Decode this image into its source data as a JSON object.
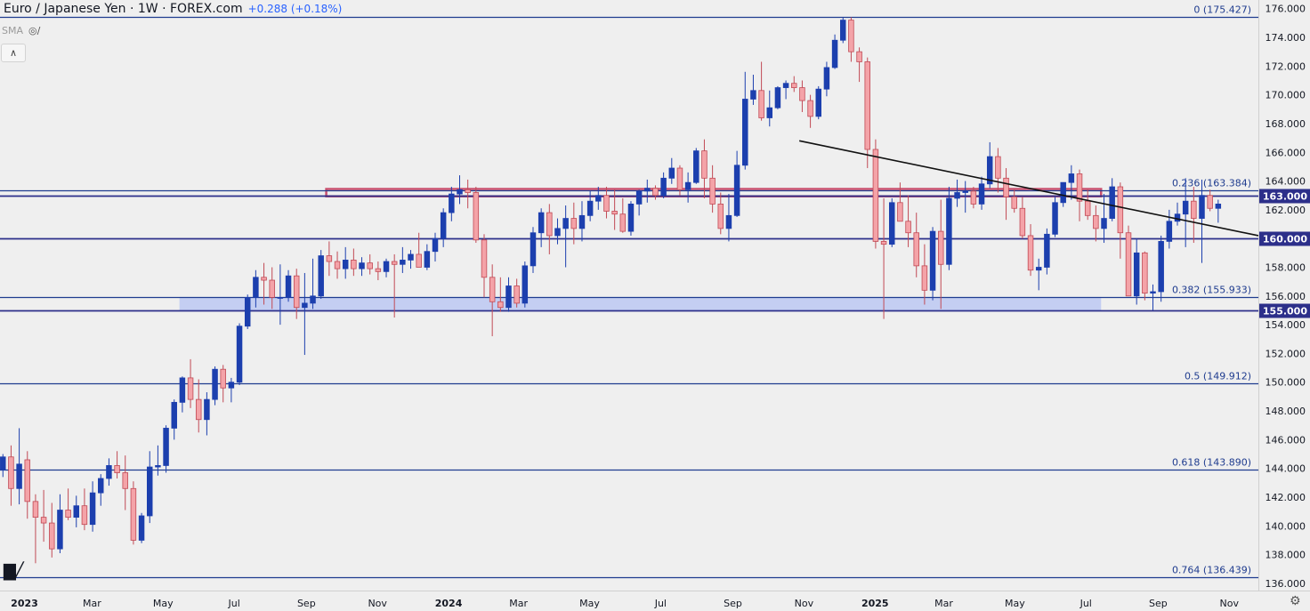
{
  "header": {
    "title": "Euro / Japanese Yen · 1W · FOREX.com",
    "change": "+0.288 (+0.18%)",
    "indicator": "SMA"
  },
  "icons": {
    "visibility": "eye-off-icon",
    "collapse": "chevron-up-icon",
    "logo": "tradingview-logo",
    "settings": "gear-icon"
  },
  "colors": {
    "background": "#efefef",
    "bull": "#1c3fae",
    "bear": "#f4a3a8",
    "bear_edge": "#c14a55",
    "level_line": "#2c2f8a",
    "fib_line": "#1f3c8f",
    "resistance_band": "#c9506f",
    "support_zone": "#b9c5f2",
    "trendline": "#111111",
    "axis_text": "#131722"
  },
  "chart_data": {
    "type": "candlestick",
    "symbol": "EUR/JPY",
    "interval": "1W",
    "ylim": [
      135.5,
      176.6
    ],
    "yticks": [
      136,
      138,
      140,
      142,
      144,
      146,
      148,
      150,
      152,
      154,
      156,
      158,
      160,
      162,
      164,
      166,
      168,
      170,
      172,
      174,
      176
    ],
    "ytick_labels": [
      "136.000",
      "138.000",
      "140.000",
      "142.000",
      "144.000",
      "146.000",
      "148.000",
      "150.000",
      "152.000",
      "154.000",
      "156.000",
      "158.000",
      "160.000",
      "162.000",
      "164.000",
      "166.000",
      "168.000",
      "170.000",
      "172.000",
      "174.000",
      "176.000"
    ],
    "xlim": [
      "2022-12-12",
      "2025-11-26"
    ],
    "xticks": [
      {
        "date": "2023-01-02",
        "label": "2023",
        "bold": true
      },
      {
        "date": "2023-03-01",
        "label": "Mar"
      },
      {
        "date": "2023-05-01",
        "label": "May"
      },
      {
        "date": "2023-07-01",
        "label": "Jul"
      },
      {
        "date": "2023-09-01",
        "label": "Sep"
      },
      {
        "date": "2023-11-01",
        "label": "Nov"
      },
      {
        "date": "2024-01-01",
        "label": "2024",
        "bold": true
      },
      {
        "date": "2024-03-01",
        "label": "Mar"
      },
      {
        "date": "2024-05-01",
        "label": "May"
      },
      {
        "date": "2024-07-01",
        "label": "Jul"
      },
      {
        "date": "2024-09-01",
        "label": "Sep"
      },
      {
        "date": "2024-11-01",
        "label": "Nov"
      },
      {
        "date": "2025-01-01",
        "label": "2025",
        "bold": true
      },
      {
        "date": "2025-03-01",
        "label": "Mar"
      },
      {
        "date": "2025-05-01",
        "label": "May"
      },
      {
        "date": "2025-07-01",
        "label": "Jul"
      },
      {
        "date": "2025-09-01",
        "label": "Sep"
      },
      {
        "date": "2025-11-01",
        "label": "Nov"
      }
    ],
    "first_week": "2022-12-12",
    "weeks": [
      [
        143.9,
        145.0,
        143.4,
        144.8
      ],
      [
        144.8,
        145.6,
        141.4,
        142.6
      ],
      [
        142.6,
        146.8,
        141.5,
        144.3
      ],
      [
        144.6,
        145.2,
        140.5,
        141.7
      ],
      [
        141.7,
        142.2,
        137.4,
        140.6
      ],
      [
        140.6,
        142.5,
        138.9,
        140.2
      ],
      [
        140.2,
        141.6,
        137.8,
        138.4
      ],
      [
        138.4,
        142.2,
        138.1,
        141.1
      ],
      [
        141.1,
        142.6,
        140.4,
        140.6
      ],
      [
        140.6,
        142.1,
        139.9,
        141.4
      ],
      [
        141.4,
        142.6,
        139.7,
        140.1
      ],
      [
        140.1,
        143.1,
        139.6,
        142.3
      ],
      [
        142.3,
        143.6,
        141.4,
        143.3
      ],
      [
        143.3,
        144.7,
        142.8,
        144.2
      ],
      [
        144.2,
        145.2,
        143.3,
        143.7
      ],
      [
        143.7,
        144.9,
        141.1,
        142.6
      ],
      [
        142.6,
        143.1,
        138.7,
        139.0
      ],
      [
        139.0,
        140.9,
        138.8,
        140.7
      ],
      [
        140.7,
        145.2,
        140.2,
        144.1
      ],
      [
        144.1,
        145.6,
        143.5,
        144.2
      ],
      [
        144.2,
        147.0,
        143.7,
        146.8
      ],
      [
        146.8,
        148.8,
        146.0,
        148.6
      ],
      [
        148.6,
        150.4,
        147.9,
        150.3
      ],
      [
        150.3,
        151.6,
        148.2,
        148.8
      ],
      [
        148.8,
        150.2,
        146.5,
        147.4
      ],
      [
        147.4,
        149.3,
        146.3,
        148.8
      ],
      [
        148.8,
        151.1,
        148.4,
        150.9
      ],
      [
        150.9,
        151.2,
        148.6,
        149.6
      ],
      [
        149.6,
        150.3,
        148.6,
        150.0
      ],
      [
        150.0,
        154.1,
        149.8,
        153.9
      ],
      [
        153.9,
        156.1,
        153.7,
        155.9
      ],
      [
        155.9,
        157.8,
        155.2,
        157.3
      ],
      [
        157.3,
        158.3,
        155.4,
        157.1
      ],
      [
        157.1,
        158.0,
        155.1,
        155.9
      ],
      [
        155.9,
        158.2,
        154.0,
        155.9
      ],
      [
        155.9,
        157.8,
        155.6,
        157.4
      ],
      [
        157.4,
        157.9,
        154.4,
        155.2
      ],
      [
        155.2,
        157.6,
        151.9,
        155.5
      ],
      [
        155.5,
        158.6,
        155.1,
        156.0
      ],
      [
        156.0,
        159.2,
        155.8,
        158.8
      ],
      [
        158.8,
        159.8,
        157.4,
        158.4
      ],
      [
        158.4,
        159.1,
        157.2,
        157.9
      ],
      [
        157.9,
        159.4,
        157.2,
        158.5
      ],
      [
        158.5,
        159.3,
        157.4,
        157.9
      ],
      [
        157.9,
        158.7,
        157.4,
        158.3
      ],
      [
        158.3,
        158.9,
        157.5,
        157.9
      ],
      [
        157.9,
        158.4,
        157.1,
        157.7
      ],
      [
        157.7,
        158.6,
        157.3,
        158.4
      ],
      [
        158.4,
        158.9,
        154.5,
        158.2
      ],
      [
        158.2,
        159.4,
        157.6,
        158.5
      ],
      [
        158.5,
        159.2,
        157.9,
        158.9
      ],
      [
        158.9,
        160.4,
        158.2,
        158.0
      ],
      [
        158.0,
        159.6,
        157.8,
        159.1
      ],
      [
        159.1,
        160.4,
        158.4,
        160.0
      ],
      [
        160.0,
        162.1,
        159.4,
        161.8
      ],
      [
        161.8,
        163.6,
        161.2,
        163.1
      ],
      [
        163.1,
        164.4,
        162.4,
        163.4
      ],
      [
        163.4,
        164.1,
        162.1,
        163.2
      ],
      [
        163.2,
        163.6,
        159.7,
        159.9
      ],
      [
        159.9,
        160.3,
        155.9,
        157.3
      ],
      [
        157.3,
        158.2,
        153.2,
        155.6
      ],
      [
        155.6,
        157.3,
        154.9,
        155.2
      ],
      [
        155.2,
        157.3,
        154.9,
        156.7
      ],
      [
        156.7,
        157.2,
        155.2,
        155.5
      ],
      [
        155.5,
        158.4,
        155.2,
        158.1
      ],
      [
        158.1,
        160.8,
        157.6,
        160.4
      ],
      [
        160.4,
        162.1,
        159.4,
        161.8
      ],
      [
        161.8,
        162.4,
        158.9,
        160.2
      ],
      [
        160.2,
        161.4,
        159.6,
        160.7
      ],
      [
        160.7,
        162.3,
        158.0,
        161.4
      ],
      [
        161.4,
        162.5,
        159.6,
        160.7
      ],
      [
        160.7,
        162.6,
        159.8,
        161.6
      ],
      [
        161.6,
        163.3,
        161.2,
        162.6
      ],
      [
        162.6,
        163.6,
        162.0,
        163.0
      ],
      [
        163.0,
        163.6,
        161.4,
        161.9
      ],
      [
        161.9,
        163.4,
        160.6,
        161.7
      ],
      [
        161.7,
        162.8,
        160.4,
        160.5
      ],
      [
        160.5,
        162.6,
        160.2,
        162.4
      ],
      [
        162.4,
        163.4,
        161.6,
        163.3
      ],
      [
        163.3,
        164.1,
        162.5,
        163.5
      ],
      [
        163.5,
        163.7,
        162.7,
        163.0
      ],
      [
        163.0,
        164.6,
        162.8,
        164.2
      ],
      [
        164.2,
        165.6,
        163.8,
        164.9
      ],
      [
        164.9,
        165.1,
        163.0,
        163.4
      ],
      [
        163.4,
        164.6,
        162.5,
        163.9
      ],
      [
        163.9,
        166.3,
        163.8,
        166.1
      ],
      [
        166.1,
        166.9,
        162.8,
        164.2
      ],
      [
        164.2,
        165.1,
        161.8,
        162.4
      ],
      [
        162.4,
        163.2,
        160.3,
        160.7
      ],
      [
        160.7,
        163.1,
        159.8,
        161.6
      ],
      [
        161.6,
        166.1,
        161.5,
        165.1
      ],
      [
        165.1,
        171.6,
        164.8,
        169.7
      ],
      [
        169.7,
        171.4,
        169.3,
        170.3
      ],
      [
        170.3,
        172.3,
        168.2,
        168.4
      ],
      [
        168.4,
        170.3,
        167.8,
        169.1
      ],
      [
        169.1,
        170.6,
        169.0,
        170.5
      ],
      [
        170.5,
        171.0,
        169.7,
        170.8
      ],
      [
        170.8,
        171.3,
        170.2,
        170.5
      ],
      [
        170.5,
        171.0,
        168.8,
        169.6
      ],
      [
        169.6,
        170.0,
        167.7,
        168.5
      ],
      [
        168.5,
        170.6,
        168.3,
        170.4
      ],
      [
        170.4,
        172.3,
        169.9,
        171.9
      ],
      [
        171.9,
        174.2,
        171.8,
        173.8
      ],
      [
        173.8,
        175.4,
        173.6,
        175.2
      ],
      [
        175.2,
        175.4,
        172.3,
        173.0
      ],
      [
        173.0,
        173.3,
        170.9,
        172.3
      ],
      [
        172.3,
        172.6,
        164.9,
        166.2
      ],
      [
        166.2,
        166.9,
        159.3,
        159.8
      ],
      [
        159.8,
        162.8,
        154.4,
        159.6
      ],
      [
        159.6,
        162.8,
        159.4,
        162.5
      ],
      [
        162.5,
        163.9,
        161.4,
        161.2
      ],
      [
        161.2,
        163.0,
        159.4,
        160.4
      ],
      [
        160.4,
        161.8,
        157.3,
        158.1
      ],
      [
        158.1,
        159.6,
        155.4,
        156.4
      ],
      [
        156.4,
        160.8,
        155.7,
        160.5
      ],
      [
        160.5,
        162.7,
        155.1,
        158.2
      ],
      [
        158.2,
        163.6,
        157.8,
        162.8
      ],
      [
        162.8,
        164.1,
        162.2,
        163.2
      ],
      [
        163.2,
        164.0,
        161.8,
        163.3
      ],
      [
        163.3,
        163.6,
        162.1,
        162.4
      ],
      [
        162.4,
        164.3,
        162.0,
        163.8
      ],
      [
        163.8,
        166.7,
        163.5,
        165.7
      ],
      [
        165.7,
        166.3,
        163.2,
        164.2
      ],
      [
        164.2,
        164.9,
        161.3,
        162.9
      ],
      [
        162.9,
        163.4,
        161.8,
        162.1
      ],
      [
        162.1,
        162.9,
        160.0,
        160.2
      ],
      [
        160.2,
        161.0,
        157.4,
        157.8
      ],
      [
        157.8,
        158.6,
        156.4,
        158.0
      ],
      [
        158.0,
        160.7,
        157.5,
        160.3
      ],
      [
        160.3,
        162.9,
        160.1,
        162.5
      ],
      [
        162.5,
        163.9,
        162.2,
        163.9
      ],
      [
        163.9,
        165.1,
        162.7,
        164.5
      ],
      [
        164.5,
        164.8,
        161.2,
        162.6
      ],
      [
        162.6,
        163.4,
        161.3,
        161.6
      ],
      [
        161.6,
        162.3,
        159.8,
        160.7
      ],
      [
        160.7,
        163.1,
        159.7,
        161.4
      ],
      [
        161.4,
        164.2,
        161.2,
        163.6
      ],
      [
        163.6,
        163.9,
        158.6,
        160.4
      ],
      [
        160.4,
        160.9,
        159.7,
        156.0
      ],
      [
        156.0,
        160.0,
        155.4,
        159.0
      ],
      [
        159.0,
        159.1,
        155.7,
        156.2
      ],
      [
        156.2,
        156.8,
        155.0,
        156.3
      ],
      [
        156.3,
        160.2,
        155.6,
        159.8
      ],
      [
        159.8,
        162.0,
        159.3,
        161.2
      ],
      [
        161.2,
        162.5,
        160.9,
        161.7
      ],
      [
        161.7,
        164.2,
        159.4,
        162.6
      ],
      [
        162.6,
        163.6,
        159.7,
        161.4
      ],
      [
        161.4,
        164.1,
        158.3,
        163.0
      ],
      [
        163.0,
        163.4,
        161.9,
        162.1
      ],
      [
        162.1,
        162.7,
        161.1,
        162.4
      ]
    ],
    "levels": [
      {
        "value": 175.427,
        "fib": true,
        "label": "0 (175.427)"
      },
      {
        "value": 163.384,
        "fib": true,
        "label": "0.236 (163.384)"
      },
      {
        "value": 163.0,
        "fib": false,
        "label": "163.000"
      },
      {
        "value": 160.0,
        "fib": false,
        "label": "160.000"
      },
      {
        "value": 155.933,
        "fib": true,
        "label": "0.382 (155.933)"
      },
      {
        "value": 155.0,
        "fib": false,
        "label": "155.000"
      },
      {
        "value": 149.912,
        "fib": true,
        "label": "0.5 (149.912)"
      },
      {
        "value": 143.89,
        "fib": true,
        "label": "0.618 (143.890)"
      },
      {
        "value": 136.439,
        "fib": true,
        "label": "0.764 (136.439)"
      }
    ],
    "resistance_band": {
      "from": 163.0,
      "to": 163.384,
      "start": "2023-09-18",
      "end": "2025-07-14"
    },
    "support_zone": {
      "from": 155.0,
      "to": 155.933,
      "start": "2023-05-15",
      "end": "2025-07-14"
    },
    "trendline": {
      "start": {
        "date": "2024-10-28",
        "value": 166.8
      },
      "end": {
        "date": "2025-11-26",
        "value": 160.2
      }
    }
  }
}
